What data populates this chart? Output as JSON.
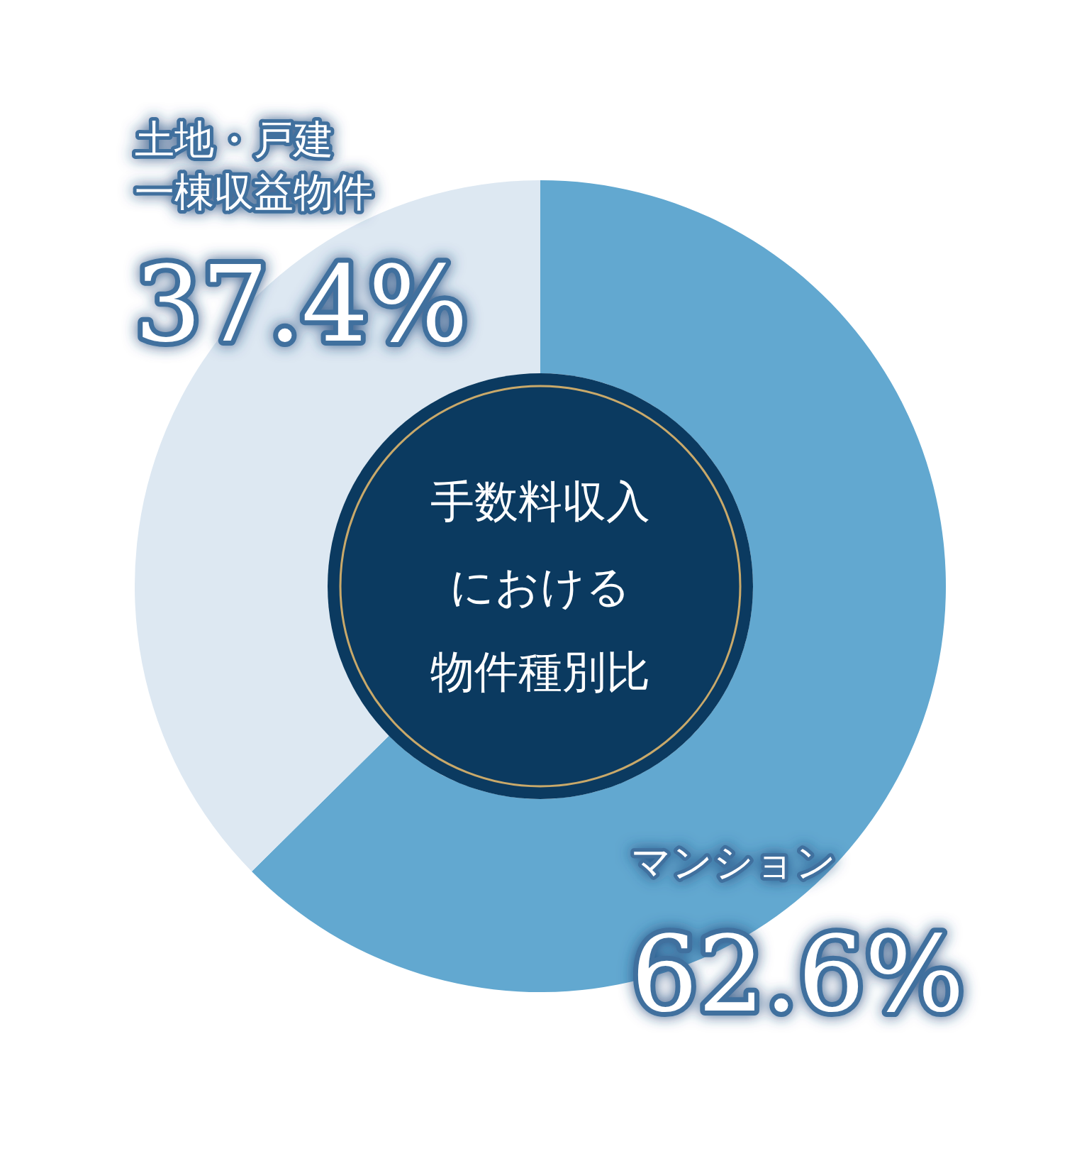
{
  "chart_data": {
    "type": "donut",
    "title": "手数料収入における物件種別比",
    "categories": [
      "マンション",
      "土地・戸建一棟収益物件"
    ],
    "values": [
      62.6,
      37.4
    ],
    "colors": [
      "#62a8d0",
      "#dde8f2"
    ],
    "value_labels": [
      "62.6%",
      "37.4%"
    ]
  }
}
